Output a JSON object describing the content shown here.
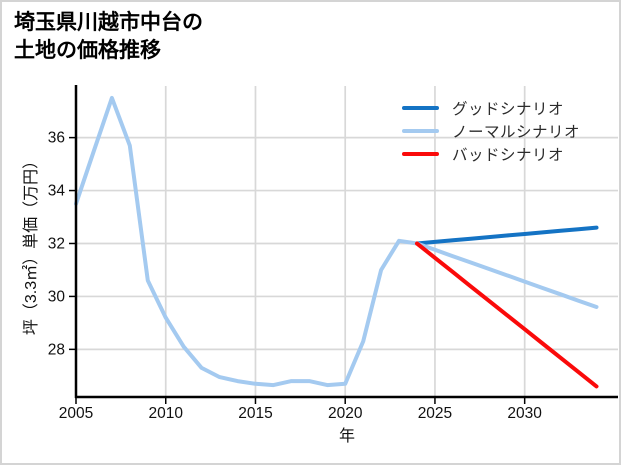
{
  "card": {
    "background": "#ffffff",
    "border_color": "#d4d4d4"
  },
  "chart_data": {
    "type": "line",
    "title_lines": [
      "埼玉県川越市中台の",
      "土地の価格推移"
    ],
    "xlabel": "年",
    "ylabel": "坪（3.3㎡）単価（万円）",
    "xlim": [
      2005,
      2035.2
    ],
    "ylim": [
      26.2,
      37.95
    ],
    "xticks": [
      2005,
      2010,
      2015,
      2020,
      2025,
      2030
    ],
    "yticks": [
      28,
      30,
      32,
      34,
      36
    ],
    "grid": true,
    "grid_color": "#d8d8d8",
    "axis_color": "#000000",
    "legend_position": "upper-right",
    "series": [
      {
        "key": "good",
        "name": "グッドシナリオ",
        "color": "#1473c4",
        "width": 4,
        "x": [
          2024,
          2025,
          2026,
          2027,
          2028,
          2029,
          2030,
          2031,
          2032,
          2033,
          2034
        ],
        "y": [
          32.0,
          32.06,
          32.12,
          32.18,
          32.24,
          32.3,
          32.36,
          32.42,
          32.48,
          32.54,
          32.6
        ]
      },
      {
        "key": "normal",
        "name": "ノーマルシナリオ",
        "color": "#a4caf0",
        "width": 4,
        "x": [
          2005,
          2006,
          2007,
          2008,
          2009,
          2010,
          2011,
          2012,
          2013,
          2014,
          2015,
          2016,
          2017,
          2018,
          2019,
          2020,
          2021,
          2022,
          2023,
          2024,
          2025,
          2026,
          2027,
          2028,
          2029,
          2030,
          2031,
          2032,
          2033,
          2034
        ],
        "y": [
          33.5,
          35.5,
          37.5,
          35.7,
          30.6,
          29.2,
          28.1,
          27.3,
          26.95,
          26.8,
          26.7,
          26.65,
          26.8,
          26.8,
          26.65,
          26.7,
          28.3,
          31.0,
          32.1,
          32.0,
          31.76,
          31.52,
          31.28,
          31.04,
          30.8,
          30.56,
          30.32,
          30.08,
          29.84,
          29.6
        ]
      },
      {
        "key": "bad",
        "name": "バッドシナリオ",
        "color": "#fa0a0a",
        "width": 4,
        "x": [
          2024,
          2025,
          2026,
          2027,
          2028,
          2029,
          2030,
          2031,
          2032,
          2033,
          2034
        ],
        "y": [
          32.0,
          31.46,
          30.92,
          30.38,
          29.84,
          29.3,
          28.76,
          28.22,
          27.68,
          27.14,
          26.6
        ]
      }
    ]
  }
}
